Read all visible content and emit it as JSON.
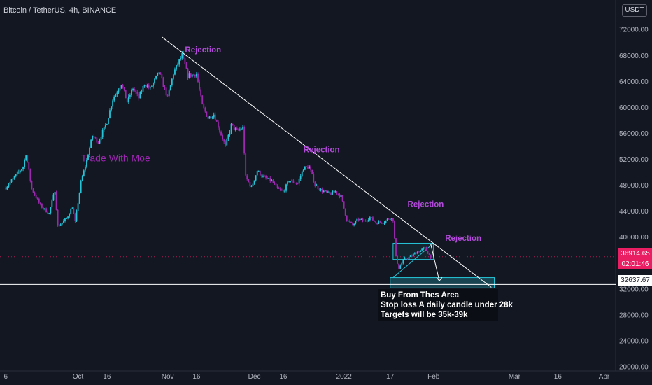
{
  "header": {
    "symbol": "Bitcoin / TetherUS, 4h, BINANCE",
    "currency": "USDT"
  },
  "chart_data": {
    "type": "candlestick",
    "y_axis": {
      "ticks": [
        72000,
        68000,
        64000,
        60000,
        56000,
        52000,
        48000,
        44000,
        40000,
        36000,
        32000,
        28000,
        24000,
        20000
      ],
      "tick_labels": [
        "72000.00",
        "68000.00",
        "64000.00",
        "60000.00",
        "56000.00",
        "52000.00",
        "48000.00",
        "44000.00",
        "40000.00",
        "36000.00",
        "32000.00",
        "28000.00",
        "24000.00",
        "20000.00"
      ],
      "range": [
        19300,
        76500
      ]
    },
    "x_axis": {
      "ticks": [
        "6",
        "Oct",
        "16",
        "Nov",
        "16",
        "Dec",
        "16",
        "2022",
        "17",
        "Feb",
        "Mar",
        "16",
        "Apr"
      ],
      "tick_day_index": [
        0,
        25,
        35,
        56,
        66,
        86,
        96,
        117,
        133,
        148,
        176,
        191,
        207
      ],
      "day_range": [
        -2,
        211
      ],
      "start_date": "2021-09-06"
    },
    "price_path": [
      [
        0,
        47600
      ],
      [
        3,
        49200
      ],
      [
        6,
        50800
      ],
      [
        7,
        52800
      ],
      [
        9,
        47400
      ],
      [
        12,
        44800
      ],
      [
        15,
        43600
      ],
      [
        17,
        47200
      ],
      [
        18,
        41600
      ],
      [
        21,
        42800
      ],
      [
        23,
        44600
      ],
      [
        24,
        42200
      ],
      [
        26,
        48400
      ],
      [
        28,
        51800
      ],
      [
        30,
        55600
      ],
      [
        32,
        54600
      ],
      [
        35,
        57700
      ],
      [
        37,
        61200
      ],
      [
        40,
        63600
      ],
      [
        42,
        60800
      ],
      [
        44,
        62900
      ],
      [
        46,
        61400
      ],
      [
        48,
        63600
      ],
      [
        50,
        62800
      ],
      [
        53,
        65400
      ],
      [
        56,
        61400
      ],
      [
        58,
        65200
      ],
      [
        61,
        68000
      ],
      [
        63,
        64800
      ],
      [
        66,
        65100
      ],
      [
        68,
        60200
      ],
      [
        70,
        58300
      ],
      [
        72,
        58900
      ],
      [
        74,
        56400
      ],
      [
        76,
        53900
      ],
      [
        78,
        57200
      ],
      [
        80,
        56300
      ],
      [
        82,
        56800
      ],
      [
        83,
        49200
      ],
      [
        85,
        47600
      ],
      [
        87,
        50200
      ],
      [
        89,
        49200
      ],
      [
        92,
        48600
      ],
      [
        94,
        47400
      ],
      [
        96,
        46900
      ],
      [
        98,
        48700
      ],
      [
        101,
        48200
      ],
      [
        103,
        50600
      ],
      [
        105,
        50800
      ],
      [
        107,
        48000
      ],
      [
        109,
        47200
      ],
      [
        112,
        46600
      ],
      [
        114,
        47000
      ],
      [
        116,
        46200
      ],
      [
        118,
        42600
      ],
      [
        120,
        41800
      ],
      [
        122,
        42700
      ],
      [
        124,
        42400
      ],
      [
        126,
        43000
      ],
      [
        128,
        42200
      ],
      [
        131,
        42300
      ],
      [
        133,
        43000
      ],
      [
        134,
        42600
      ],
      [
        135,
        36800
      ],
      [
        136,
        35200
      ],
      [
        138,
        36600
      ],
      [
        140,
        36900
      ],
      [
        142,
        37600
      ],
      [
        145,
        38200
      ],
      [
        147,
        36900
      ]
    ],
    "current_price": "36914.65",
    "countdown": "02:01:46",
    "horizontal_level": "32637.67",
    "trendline": {
      "from": [
        54,
        70800
      ],
      "to": [
        150,
        38000
      ],
      "extended_to": [
        168,
        32200
      ]
    },
    "buy_zone": {
      "day_from": 133,
      "day_to": 169,
      "price_low": 32100,
      "price_high": 33700
    },
    "range_box": {
      "day_from": 134,
      "day_to": 148,
      "price_low": 36500,
      "price_high": 39000
    },
    "projection": {
      "from": [
        147,
        38900
      ],
      "to": [
        150,
        33200
      ]
    },
    "annotations": [
      {
        "text": "Rejection",
        "day": 62,
        "price": 68400
      },
      {
        "text": "Rejection",
        "day": 103,
        "price": 53000
      },
      {
        "text": "Rejection",
        "day": 139,
        "price": 44600
      },
      {
        "text": "Rejection",
        "day": 152,
        "price": 39400
      }
    ],
    "watermark_text": "Trade With Moe",
    "note_lines": [
      "Buy From Thes Area",
      "Stop loss A daily candle under 28k",
      "Targets will be 35k-39k"
    ]
  },
  "colors": {
    "background": "#131722",
    "up_candle": "#26c6da",
    "down_candle": "#9c27b0",
    "annotation": "#b14ad9",
    "trendline": "#ffffff",
    "buy_zone_border": "#26c6da",
    "price_tag": "#e91e63",
    "axis_text": "#b2b5be"
  }
}
